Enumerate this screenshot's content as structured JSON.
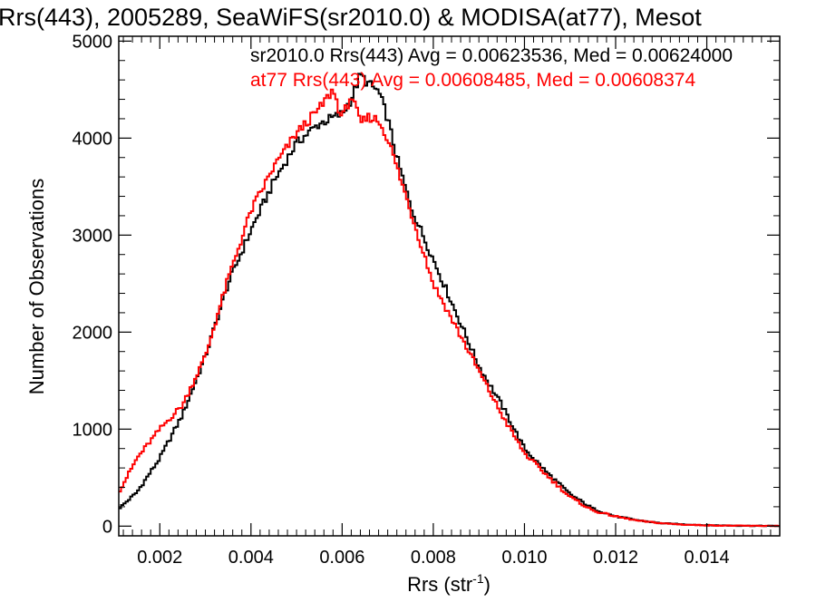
{
  "chart_data": {
    "type": "line",
    "title": "Rrs(443), 2005289, SeaWiFS(sr2010.0) & MODISA(at77), Mesot",
    "xlabel": "Rrs (str",
    "xlabel_sup": "-1",
    "xlabel_close": ")",
    "ylabel": "Number of Observations",
    "xlim": [
      0.0011,
      0.0156
    ],
    "ylim": [
      -100,
      5050
    ],
    "xticks": [
      0.002,
      0.004,
      0.006,
      0.008,
      0.01,
      0.012,
      0.014
    ],
    "xtick_labels": [
      "0.002",
      "0.004",
      "0.006",
      "0.008",
      "0.010",
      "0.012",
      "0.014"
    ],
    "yticks": [
      0,
      1000,
      2000,
      3000,
      4000,
      5000
    ],
    "ytick_labels": [
      "0",
      "1000",
      "2000",
      "3000",
      "4000",
      "5000"
    ],
    "grid": false,
    "legend_position": "top",
    "series": [
      {
        "legend": "sr2010.0 Rrs(443) Avg = 0.00623536, Med = 0.00624000",
        "color": "#000000",
        "x": [
          0.0011,
          0.0015,
          0.002,
          0.0025,
          0.003,
          0.0035,
          0.004,
          0.0045,
          0.005,
          0.0055,
          0.006,
          0.0062,
          0.0064,
          0.0066,
          0.0068,
          0.007,
          0.0072,
          0.0075,
          0.008,
          0.0085,
          0.009,
          0.0095,
          0.01,
          0.0105,
          0.011,
          0.0115,
          0.012,
          0.0125,
          0.013,
          0.0135,
          0.014,
          0.0145,
          0.015,
          0.0156
        ],
        "y": [
          180,
          350,
          700,
          1150,
          1750,
          2500,
          3050,
          3550,
          3950,
          4150,
          4250,
          4400,
          4650,
          4550,
          4480,
          4200,
          3800,
          3300,
          2750,
          2200,
          1650,
          1250,
          800,
          550,
          330,
          180,
          100,
          60,
          30,
          18,
          10,
          6,
          3,
          2
        ]
      },
      {
        "legend": "at77 Rrs(443) Avg = 0.00608485, Med = 0.00608374",
        "color": "#ff0000",
        "x": [
          0.0011,
          0.0015,
          0.002,
          0.0025,
          0.003,
          0.0035,
          0.004,
          0.0045,
          0.005,
          0.0055,
          0.0058,
          0.006,
          0.0062,
          0.0064,
          0.0066,
          0.0068,
          0.007,
          0.0072,
          0.0075,
          0.008,
          0.0085,
          0.009,
          0.0095,
          0.01,
          0.0105,
          0.011,
          0.0115,
          0.012,
          0.0125,
          0.013,
          0.0135,
          0.014,
          0.0145,
          0.015,
          0.0156
        ],
        "y": [
          350,
          700,
          1000,
          1250,
          1750,
          2550,
          3250,
          3700,
          4050,
          4300,
          4500,
          4200,
          4450,
          4150,
          4220,
          4180,
          4000,
          3700,
          3250,
          2500,
          2050,
          1600,
          1150,
          750,
          520,
          300,
          160,
          100,
          55,
          30,
          15,
          8,
          5,
          3,
          2
        ]
      }
    ]
  }
}
